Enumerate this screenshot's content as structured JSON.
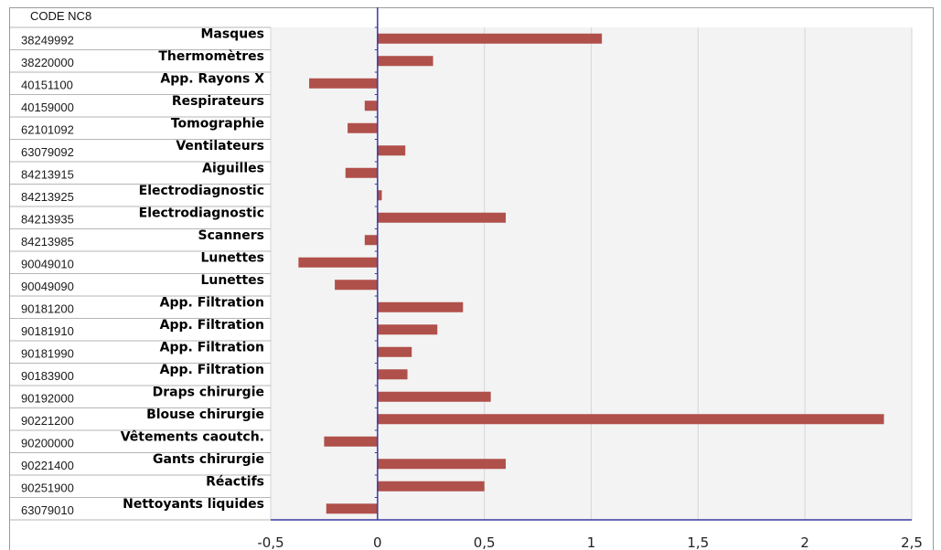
{
  "chart_data": {
    "type": "bar",
    "orientation": "horizontal",
    "column_header": "CODE NC8",
    "categories": [
      {
        "code": "38249992",
        "name": "Masques"
      },
      {
        "code": "38220000",
        "name": "Thermomètres"
      },
      {
        "code": "40151100",
        "name": "App. Rayons X"
      },
      {
        "code": "40159000",
        "name": "Respirateurs"
      },
      {
        "code": "62101092",
        "name": "Tomographie"
      },
      {
        "code": "63079092",
        "name": "Ventilateurs"
      },
      {
        "code": "84213915",
        "name": "Aiguilles"
      },
      {
        "code": "84213925",
        "name": "Electrodiagnostic"
      },
      {
        "code": "84213935",
        "name": "Electrodiagnostic"
      },
      {
        "code": "84213985",
        "name": "Scanners"
      },
      {
        "code": "90049010",
        "name": "Lunettes"
      },
      {
        "code": "90049090",
        "name": "Lunettes"
      },
      {
        "code": "90181200",
        "name": "App. Filtration"
      },
      {
        "code": "90181910",
        "name": "App. Filtration"
      },
      {
        "code": "90181990",
        "name": "App. Filtration"
      },
      {
        "code": "90183900",
        "name": "App. Filtration"
      },
      {
        "code": "90192000",
        "name": "Draps chirurgie"
      },
      {
        "code": "90221200",
        "name": "Blouse chirurgie"
      },
      {
        "code": "90200000",
        "name": "Vêtements caoutch."
      },
      {
        "code": "90221400",
        "name": "Gants chirurgie"
      },
      {
        "code": "90251900",
        "name": "Réactifs"
      },
      {
        "code": "63079010",
        "name": "Nettoyants liquides"
      }
    ],
    "values": [
      1.05,
      0.26,
      -0.32,
      -0.06,
      -0.14,
      0.13,
      -0.15,
      0.02,
      0.6,
      -0.06,
      -0.37,
      -0.2,
      0.4,
      0.28,
      0.16,
      0.14,
      0.53,
      2.37,
      -0.25,
      0.6,
      0.5,
      -0.24
    ],
    "xlim": [
      -0.5,
      2.5
    ],
    "xticks": [
      -0.5,
      0,
      0.5,
      1,
      1.5,
      2,
      2.5
    ],
    "xtick_labels": [
      "-0,5",
      "0",
      "0,5",
      "1",
      "1,5",
      "2",
      "2,5"
    ],
    "grid": "vertical",
    "bar_color": "#b0504a",
    "zero_line_color": "#3a3aa0",
    "plot_background": "#f3f3f3"
  }
}
